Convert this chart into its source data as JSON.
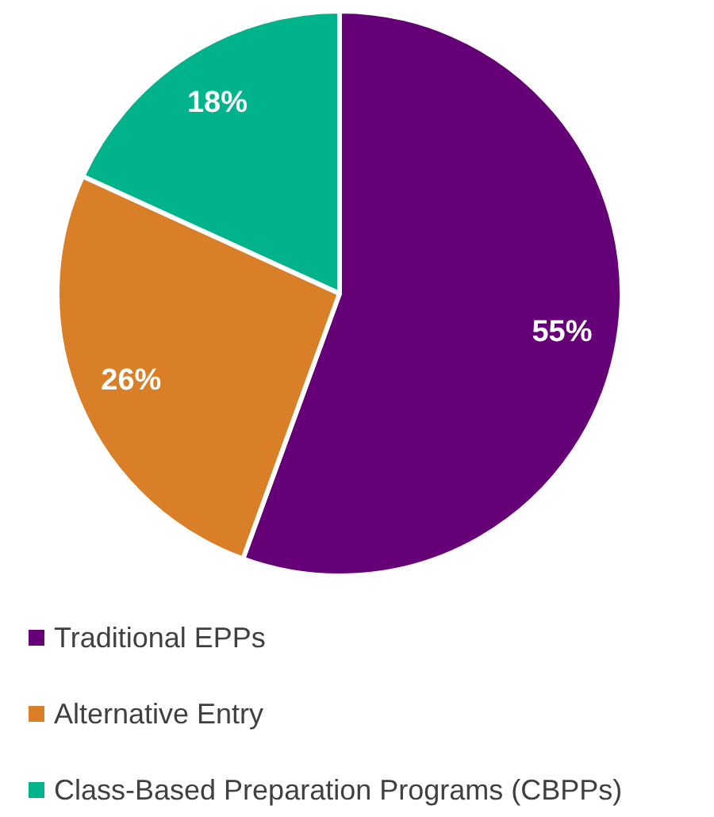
{
  "chart_data": {
    "type": "pie",
    "categories": [
      "Traditional EPPs",
      "Alternative Entry",
      "Class-Based Preparation Programs (CBPPs)"
    ],
    "values": [
      55,
      26,
      18
    ],
    "colors": [
      "#660077",
      "#d97f28",
      "#00b38a"
    ],
    "value_labels": [
      "55%",
      "26%",
      "18%"
    ],
    "legend": "bottom"
  }
}
